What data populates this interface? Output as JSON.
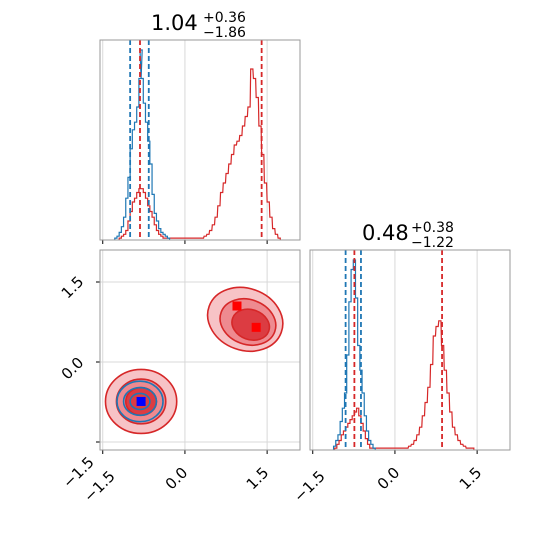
{
  "chart_data": {
    "type": "corner",
    "parameters": [
      "p1",
      "p2"
    ],
    "series": [
      {
        "color": "#1f77b4",
        "mode": -0.8,
        "quantiles": {
          "p1": [
            -1.0,
            -0.82,
            -0.66
          ],
          "p2": [
            -0.9,
            -0.76,
            -0.62
          ]
        },
        "histogram_p1": {
          "bins": [
            -1.28,
            -1.24,
            -1.2,
            -1.16,
            -1.12,
            -1.08,
            -1.04,
            -1.0,
            -0.96,
            -0.92,
            -0.88,
            -0.84,
            -0.82,
            -0.8,
            -0.76,
            -0.72,
            -0.68,
            -0.64,
            -0.6,
            -0.56,
            -0.52,
            -0.48,
            -0.44,
            -0.4,
            -0.36,
            -0.32
          ],
          "counts": [
            0.01,
            0.02,
            0.04,
            0.07,
            0.12,
            0.22,
            0.33,
            0.48,
            0.58,
            0.62,
            0.7,
            0.85,
            1.0,
            0.85,
            0.72,
            0.62,
            0.52,
            0.4,
            0.24,
            0.14,
            0.1,
            0.06,
            0.04,
            0.03,
            0.02,
            0.01
          ]
        },
        "histogram_p2": {
          "bins": [
            -1.12,
            -1.08,
            -1.04,
            -1.0,
            -0.96,
            -0.92,
            -0.88,
            -0.84,
            -0.8,
            -0.76,
            -0.72,
            -0.68,
            -0.64,
            -0.6,
            -0.56,
            -0.52,
            -0.48,
            -0.44,
            -0.4
          ],
          "counts": [
            0.02,
            0.05,
            0.08,
            0.15,
            0.22,
            0.3,
            0.5,
            0.78,
            0.95,
            1.0,
            0.8,
            0.55,
            0.42,
            0.3,
            0.18,
            0.1,
            0.05,
            0.03,
            0.01
          ]
        }
      },
      {
        "color": "#d62728",
        "modes": [
          [
            -0.8,
            -0.75
          ],
          [
            1.3,
            0.65
          ]
        ],
        "markers": [
          [
            0.95,
            1.05
          ],
          [
            1.3,
            0.65
          ]
        ],
        "quantiles": {
          "p1": [
            -0.82,
            1.04,
            1.4
          ],
          "p2": [
            -0.74,
            0.48,
            0.86
          ]
        },
        "histogram_p1": {
          "bins": [
            -1.2,
            -1.16,
            -1.12,
            -1.08,
            -1.04,
            -1.0,
            -0.96,
            -0.92,
            -0.88,
            -0.84,
            -0.8,
            -0.76,
            -0.72,
            -0.68,
            -0.64,
            -0.6,
            -0.56,
            -0.52,
            -0.48,
            -0.44,
            -0.4,
            -0.36,
            0.3,
            0.35,
            0.4,
            0.45,
            0.5,
            0.55,
            0.6,
            0.65,
            0.7,
            0.75,
            0.8,
            0.85,
            0.9,
            0.95,
            1.0,
            1.05,
            1.1,
            1.15,
            1.2,
            1.25,
            1.3,
            1.35,
            1.4,
            1.45,
            1.5,
            1.55,
            1.6,
            1.65,
            1.7
          ],
          "counts": [
            0.01,
            0.02,
            0.03,
            0.05,
            0.1,
            0.15,
            0.2,
            0.22,
            0.25,
            0.27,
            0.27,
            0.25,
            0.22,
            0.18,
            0.15,
            0.12,
            0.08,
            0.05,
            0.03,
            0.02,
            0.01,
            0.01,
            0.01,
            0.02,
            0.03,
            0.05,
            0.08,
            0.12,
            0.18,
            0.25,
            0.3,
            0.35,
            0.4,
            0.45,
            0.5,
            0.52,
            0.55,
            0.6,
            0.65,
            0.7,
            0.9,
            0.85,
            0.75,
            0.6,
            0.45,
            0.3,
            0.2,
            0.12,
            0.06,
            0.03,
            0.01
          ]
        },
        "histogram_p2": {
          "bins": [
            -1.1,
            -1.06,
            -1.02,
            -0.98,
            -0.94,
            -0.9,
            -0.86,
            -0.82,
            -0.78,
            -0.74,
            -0.7,
            -0.66,
            -0.62,
            -0.58,
            -0.54,
            -0.5,
            -0.46,
            0.2,
            0.25,
            0.3,
            0.35,
            0.4,
            0.45,
            0.5,
            0.55,
            0.6,
            0.65,
            0.7,
            0.75,
            0.8,
            0.85,
            0.9,
            0.95,
            1.0,
            1.05,
            1.1,
            1.15,
            1.2,
            1.25,
            1.3,
            1.35,
            1.4
          ],
          "counts": [
            0.01,
            0.03,
            0.05,
            0.08,
            0.1,
            0.12,
            0.14,
            0.16,
            0.18,
            0.2,
            0.22,
            0.18,
            0.14,
            0.1,
            0.06,
            0.03,
            0.01,
            0.01,
            0.02,
            0.03,
            0.05,
            0.08,
            0.12,
            0.18,
            0.25,
            0.33,
            0.45,
            0.6,
            0.65,
            0.68,
            0.55,
            0.42,
            0.3,
            0.2,
            0.12,
            0.08,
            0.05,
            0.03,
            0.02,
            0.01,
            0.01,
            0.01
          ]
        }
      }
    ],
    "titles": {
      "p1": {
        "value": "1.04",
        "plus": "+0.36",
        "minus": "−1.86"
      },
      "p2": {
        "value": "0.48",
        "plus": "+0.38",
        "minus": "−1.22"
      }
    },
    "ticks": [
      -1.5,
      0.0,
      1.5
    ],
    "tick_labels": [
      "−1.5",
      "0.0",
      "1.5"
    ],
    "xlim": [
      -1.55,
      2.1
    ],
    "ylim": [
      -1.65,
      2.1
    ],
    "grid": true
  }
}
